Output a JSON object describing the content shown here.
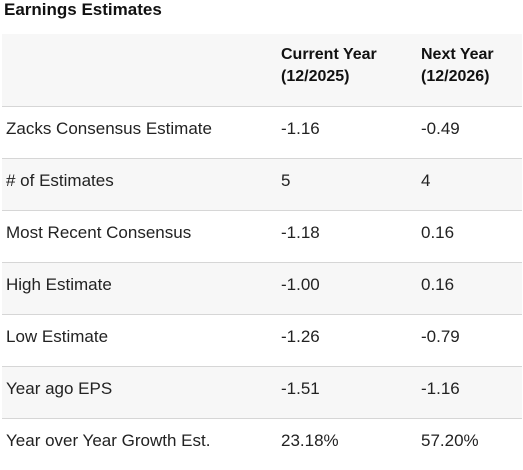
{
  "title": "Earnings Estimates",
  "columns": {
    "current": {
      "line1": "Current Year",
      "line2": "(12/2025)"
    },
    "next": {
      "line1": "Next Year",
      "line2": "(12/2026)"
    }
  },
  "rows": [
    {
      "label": "Zacks Consensus Estimate",
      "current": "-1.16",
      "next": "-0.49"
    },
    {
      "label": "# of Estimates",
      "current": "5",
      "next": "4"
    },
    {
      "label": "Most Recent Consensus",
      "current": "-1.18",
      "next": "0.16"
    },
    {
      "label": "High Estimate",
      "current": "-1.00",
      "next": "0.16"
    },
    {
      "label": "Low Estimate",
      "current": "-1.26",
      "next": "-0.79"
    },
    {
      "label": "Year ago EPS",
      "current": "-1.51",
      "next": "-1.16"
    },
    {
      "label": "Year over Year Growth Est.",
      "current": "23.18%",
      "next": "57.20%"
    }
  ]
}
